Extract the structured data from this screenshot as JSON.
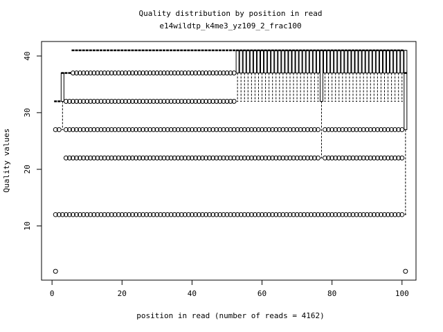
{
  "chart_data": {
    "type": "boxplot",
    "title": "Quality distribution by position in read",
    "subtitle": "e14wildtp_k4me3_yz109_2_frac100",
    "x_label": "position in read (number of reads = 4162)",
    "y_label": "Quality values",
    "xlim": [
      -3,
      104
    ],
    "ylim": [
      0.44,
      42.56
    ],
    "xticks": [
      0,
      20,
      40,
      60,
      80,
      100
    ],
    "yticks": [
      10,
      20,
      30,
      40
    ],
    "color": "#000000",
    "x": [
      1,
      2,
      3,
      4,
      5,
      6,
      7,
      8,
      9,
      10,
      11,
      12,
      13,
      14,
      15,
      16,
      17,
      18,
      19,
      20,
      21,
      22,
      23,
      24,
      25,
      26,
      27,
      28,
      29,
      30,
      31,
      32,
      33,
      34,
      35,
      36,
      37,
      38,
      39,
      40,
      41,
      42,
      43,
      44,
      45,
      46,
      47,
      48,
      49,
      50,
      51,
      52,
      53,
      54,
      55,
      56,
      57,
      58,
      59,
      60,
      61,
      62,
      63,
      64,
      65,
      66,
      67,
      68,
      69,
      70,
      71,
      72,
      73,
      74,
      75,
      76,
      77,
      78,
      79,
      80,
      81,
      82,
      83,
      84,
      85,
      86,
      87,
      88,
      89,
      90,
      91,
      92,
      93,
      94,
      95,
      96,
      97,
      98,
      99,
      100,
      101
    ],
    "whisker_low": [
      32,
      32,
      27,
      37,
      37,
      41,
      41,
      41,
      41,
      41,
      41,
      41,
      41,
      41,
      41,
      41,
      41,
      41,
      41,
      41,
      41,
      41,
      41,
      41,
      41,
      41,
      41,
      41,
      41,
      41,
      41,
      41,
      41,
      41,
      41,
      41,
      41,
      41,
      41,
      41,
      41,
      41,
      41,
      41,
      41,
      41,
      41,
      41,
      41,
      41,
      41,
      41,
      32,
      32,
      32,
      32,
      32,
      32,
      32,
      32,
      32,
      32,
      32,
      32,
      32,
      32,
      32,
      32,
      32,
      32,
      32,
      32,
      32,
      32,
      32,
      32,
      22,
      32,
      32,
      32,
      32,
      32,
      32,
      32,
      32,
      32,
      32,
      32,
      32,
      32,
      32,
      32,
      32,
      32,
      32,
      32,
      32,
      32,
      32,
      32,
      12
    ],
    "q1": [
      32,
      32,
      32,
      37,
      37,
      41,
      41,
      41,
      41,
      41,
      41,
      41,
      41,
      41,
      41,
      41,
      41,
      41,
      41,
      41,
      41,
      41,
      41,
      41,
      41,
      41,
      41,
      41,
      41,
      41,
      41,
      41,
      41,
      41,
      41,
      41,
      41,
      41,
      41,
      41,
      41,
      41,
      41,
      41,
      41,
      41,
      41,
      41,
      41,
      41,
      41,
      41,
      37,
      37,
      37,
      37,
      37,
      37,
      37,
      37,
      37,
      37,
      37,
      37,
      37,
      37,
      37,
      37,
      37,
      37,
      37,
      37,
      37,
      37,
      37,
      37,
      32,
      37,
      37,
      37,
      37,
      37,
      37,
      37,
      37,
      37,
      37,
      37,
      37,
      37,
      37,
      37,
      37,
      37,
      37,
      37,
      37,
      37,
      37,
      37,
      27
    ],
    "median": [
      32,
      32,
      37,
      37,
      37,
      41,
      41,
      41,
      41,
      41,
      41,
      41,
      41,
      41,
      41,
      41,
      41,
      41,
      41,
      41,
      41,
      41,
      41,
      41,
      41,
      41,
      41,
      41,
      41,
      41,
      41,
      41,
      41,
      41,
      41,
      41,
      41,
      41,
      41,
      41,
      41,
      41,
      41,
      41,
      41,
      41,
      41,
      41,
      41,
      41,
      41,
      41,
      41,
      41,
      41,
      41,
      41,
      41,
      41,
      41,
      41,
      41,
      41,
      41,
      41,
      41,
      41,
      41,
      41,
      41,
      41,
      41,
      41,
      41,
      41,
      41,
      41,
      41,
      41,
      41,
      41,
      41,
      41,
      41,
      41,
      41,
      41,
      41,
      41,
      41,
      41,
      41,
      41,
      41,
      41,
      41,
      41,
      41,
      41,
      41,
      37
    ],
    "q3": [
      32,
      32,
      37,
      37,
      37,
      41,
      41,
      41,
      41,
      41,
      41,
      41,
      41,
      41,
      41,
      41,
      41,
      41,
      41,
      41,
      41,
      41,
      41,
      41,
      41,
      41,
      41,
      41,
      41,
      41,
      41,
      41,
      41,
      41,
      41,
      41,
      41,
      41,
      41,
      41,
      41,
      41,
      41,
      41,
      41,
      41,
      41,
      41,
      41,
      41,
      41,
      41,
      41,
      41,
      41,
      41,
      41,
      41,
      41,
      41,
      41,
      41,
      41,
      41,
      41,
      41,
      41,
      41,
      41,
      41,
      41,
      41,
      41,
      41,
      41,
      41,
      41,
      41,
      41,
      41,
      41,
      41,
      41,
      41,
      41,
      41,
      41,
      41,
      41,
      41,
      41,
      41,
      41,
      41,
      41,
      41,
      41,
      41,
      41,
      41,
      41
    ],
    "whisker_high": [
      32,
      32,
      37,
      37,
      37,
      41,
      41,
      41,
      41,
      41,
      41,
      41,
      41,
      41,
      41,
      41,
      41,
      41,
      41,
      41,
      41,
      41,
      41,
      41,
      41,
      41,
      41,
      41,
      41,
      41,
      41,
      41,
      41,
      41,
      41,
      41,
      41,
      41,
      41,
      41,
      41,
      41,
      41,
      41,
      41,
      41,
      41,
      41,
      41,
      41,
      41,
      41,
      41,
      41,
      41,
      41,
      41,
      41,
      41,
      41,
      41,
      41,
      41,
      41,
      41,
      41,
      41,
      41,
      41,
      41,
      41,
      41,
      41,
      41,
      41,
      41,
      41,
      41,
      41,
      41,
      41,
      41,
      41,
      41,
      41,
      41,
      41,
      41,
      41,
      41,
      41,
      41,
      41,
      41,
      41,
      41,
      41,
      41,
      41,
      41,
      41
    ],
    "outliers": [
      [
        27,
        12,
        2
      ],
      [
        27,
        12
      ],
      [
        12
      ],
      [
        32,
        27,
        22,
        12
      ],
      [
        32,
        27,
        22,
        12
      ],
      [
        37,
        32,
        27,
        22,
        12
      ],
      [
        37,
        32,
        27,
        22,
        12
      ],
      [
        37,
        32,
        27,
        22,
        12
      ],
      [
        37,
        32,
        27,
        22,
        12
      ],
      [
        37,
        32,
        27,
        22,
        12
      ],
      [
        37,
        32,
        27,
        22,
        12
      ],
      [
        37,
        32,
        27,
        22,
        12
      ],
      [
        37,
        32,
        27,
        22,
        12
      ],
      [
        37,
        32,
        27,
        22,
        12
      ],
      [
        37,
        32,
        27,
        22,
        12
      ],
      [
        37,
        32,
        27,
        22,
        12
      ],
      [
        37,
        32,
        27,
        22,
        12
      ],
      [
        37,
        32,
        27,
        22,
        12
      ],
      [
        37,
        32,
        27,
        22,
        12
      ],
      [
        37,
        32,
        27,
        22,
        12
      ],
      [
        37,
        32,
        27,
        22,
        12
      ],
      [
        37,
        32,
        27,
        22,
        12
      ],
      [
        37,
        32,
        27,
        22,
        12
      ],
      [
        37,
        32,
        27,
        22,
        12
      ],
      [
        37,
        32,
        27,
        22,
        12
      ],
      [
        37,
        32,
        27,
        22,
        12
      ],
      [
        37,
        32,
        27,
        22,
        12
      ],
      [
        37,
        32,
        27,
        22,
        12
      ],
      [
        37,
        32,
        27,
        22,
        12
      ],
      [
        37,
        32,
        27,
        22,
        12
      ],
      [
        37,
        32,
        27,
        22,
        12
      ],
      [
        37,
        32,
        27,
        22,
        12
      ],
      [
        37,
        32,
        27,
        22,
        12
      ],
      [
        37,
        32,
        27,
        22,
        12
      ],
      [
        37,
        32,
        27,
        22,
        12
      ],
      [
        37,
        32,
        27,
        22,
        12
      ],
      [
        37,
        32,
        27,
        22,
        12
      ],
      [
        37,
        32,
        27,
        22,
        12
      ],
      [
        37,
        32,
        27,
        22,
        12
      ],
      [
        37,
        32,
        27,
        22,
        12
      ],
      [
        37,
        32,
        27,
        22,
        12
      ],
      [
        37,
        32,
        27,
        22,
        12
      ],
      [
        37,
        32,
        27,
        22,
        12
      ],
      [
        37,
        32,
        27,
        22,
        12
      ],
      [
        37,
        32,
        27,
        22,
        12
      ],
      [
        37,
        32,
        27,
        22,
        12
      ],
      [
        37,
        32,
        27,
        22,
        12
      ],
      [
        37,
        32,
        27,
        22,
        12
      ],
      [
        37,
        32,
        27,
        22,
        12
      ],
      [
        37,
        32,
        27,
        22,
        12
      ],
      [
        37,
        32,
        27,
        22,
        12
      ],
      [
        37,
        32,
        27,
        22,
        12
      ],
      [
        27,
        22,
        12
      ],
      [
        27,
        22,
        12
      ],
      [
        27,
        22,
        12
      ],
      [
        27,
        22,
        12
      ],
      [
        27,
        22,
        12
      ],
      [
        27,
        22,
        12
      ],
      [
        27,
        22,
        12
      ],
      [
        27,
        22,
        12
      ],
      [
        27,
        22,
        12
      ],
      [
        27,
        22,
        12
      ],
      [
        27,
        22,
        12
      ],
      [
        27,
        22,
        12
      ],
      [
        27,
        22,
        12
      ],
      [
        27,
        22,
        12
      ],
      [
        27,
        22,
        12
      ],
      [
        27,
        22,
        12
      ],
      [
        27,
        22,
        12
      ],
      [
        27,
        22,
        12
      ],
      [
        27,
        22,
        12
      ],
      [
        27,
        22,
        12
      ],
      [
        27,
        22,
        12
      ],
      [
        27,
        22,
        12
      ],
      [
        27,
        22,
        12
      ],
      [
        27,
        22,
        12
      ],
      [
        12
      ],
      [
        27,
        22,
        12
      ],
      [
        27,
        22,
        12
      ],
      [
        27,
        22,
        12
      ],
      [
        27,
        22,
        12
      ],
      [
        27,
        22,
        12
      ],
      [
        27,
        22,
        12
      ],
      [
        27,
        22,
        12
      ],
      [
        27,
        22,
        12
      ],
      [
        27,
        22,
        12
      ],
      [
        27,
        22,
        12
      ],
      [
        27,
        22,
        12
      ],
      [
        27,
        22,
        12
      ],
      [
        27,
        22,
        12
      ],
      [
        27,
        22,
        12
      ],
      [
        27,
        22,
        12
      ],
      [
        27,
        22,
        12
      ],
      [
        27,
        22,
        12
      ],
      [
        27,
        22,
        12
      ],
      [
        27,
        22,
        12
      ],
      [
        27,
        22,
        12
      ],
      [
        27,
        22,
        12
      ],
      [
        27,
        22,
        12
      ],
      [
        27,
        22,
        12
      ],
      [
        2
      ]
    ]
  }
}
